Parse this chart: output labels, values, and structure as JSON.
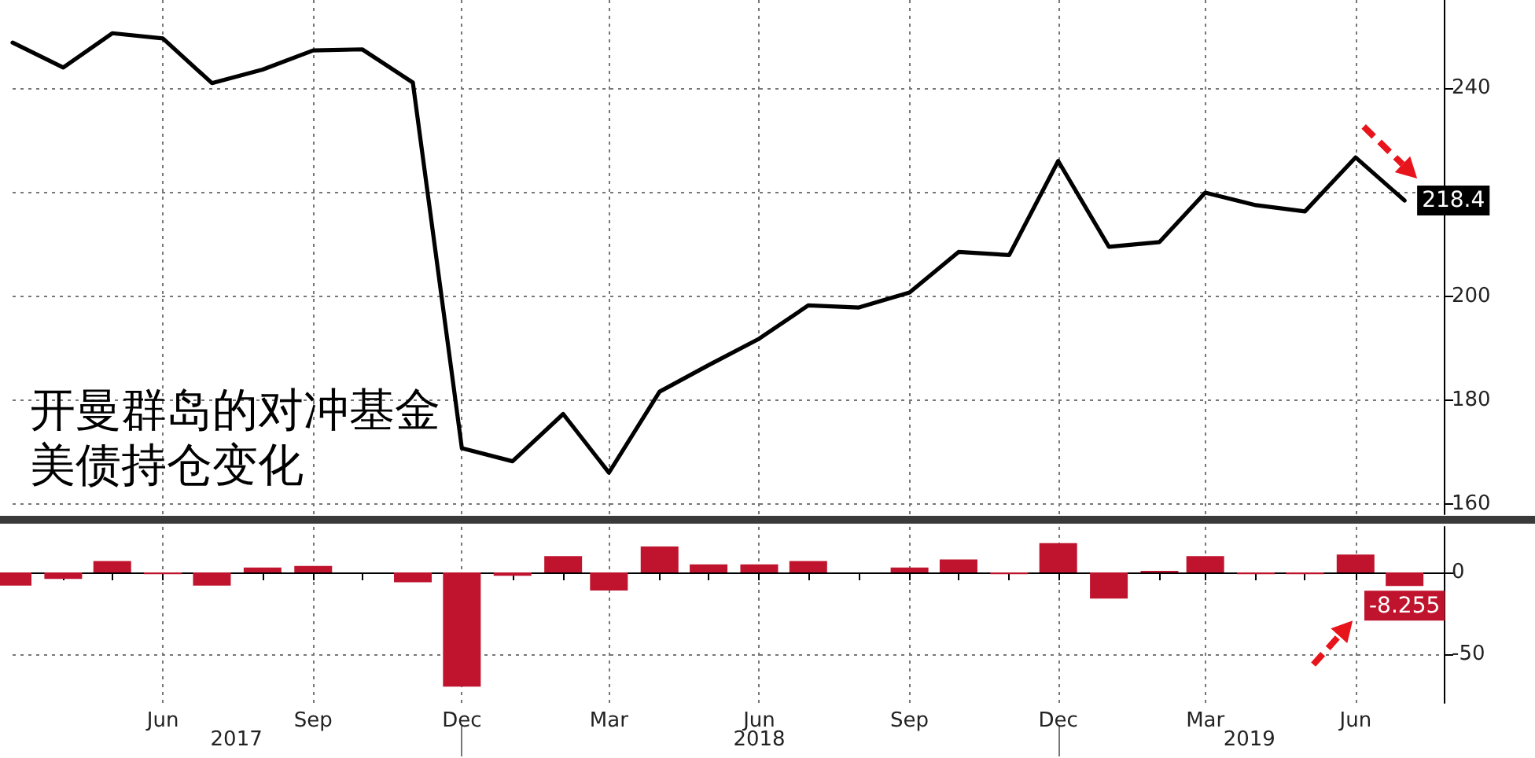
{
  "chart_data": [
    {
      "type": "line",
      "title": "开曼群岛的对冲基金美债持仓变化",
      "x": [
        "2017-03",
        "2017-04",
        "2017-05",
        "2017-06",
        "2017-07",
        "2017-08",
        "2017-09",
        "2017-10",
        "2017-11",
        "2017-12",
        "2018-01",
        "2018-02",
        "2018-03",
        "2018-04",
        "2018-05",
        "2018-06",
        "2018-07",
        "2018-08",
        "2018-09",
        "2018-10",
        "2018-11",
        "2018-12",
        "2019-01",
        "2019-02",
        "2019-03",
        "2019-04",
        "2019-05",
        "2019-06",
        "2019-07"
      ],
      "values": [
        248.8,
        244.0,
        250.6,
        249.6,
        241.0,
        243.6,
        247.3,
        247.5,
        241.1,
        170.7,
        168.2,
        177.3,
        166.0,
        181.6,
        186.7,
        191.8,
        198.2,
        197.8,
        200.7,
        208.5,
        207.9,
        226.0,
        209.5,
        210.4,
        219.9,
        217.5,
        216.3,
        226.7,
        218.4
      ],
      "value_labels": [
        null,
        null,
        null,
        null,
        null,
        null,
        null,
        null,
        null,
        null,
        null,
        null,
        null,
        null,
        null,
        null,
        null,
        null,
        null,
        null,
        null,
        null,
        null,
        null,
        null,
        null,
        null,
        null,
        "218.4"
      ],
      "color": "#000000",
      "xlim": [
        "2017-03",
        "2019-07-25"
      ],
      "xticks": [
        {
          "value": "2017-06",
          "label": null
        },
        {
          "value": "2017-09",
          "label": null
        },
        {
          "value": "2017-12",
          "label": null
        },
        {
          "value": "2018-03",
          "label": null
        },
        {
          "value": "2018-06",
          "label": null
        },
        {
          "value": "2018-09",
          "label": null
        },
        {
          "value": "2018-12",
          "label": null
        },
        {
          "value": "2019-03",
          "label": null
        },
        {
          "value": "2019-06",
          "label": null
        }
      ],
      "ylim": [
        158,
        257
      ],
      "yticks": [
        160,
        180,
        200,
        {
          "value": 220,
          "label": null
        },
        240
      ],
      "grid": true,
      "marker": "none",
      "tick_labels": "y"
    },
    {
      "type": "bar",
      "x": [
        "2017-03",
        "2017-04",
        "2017-05",
        "2017-06",
        "2017-07",
        "2017-08",
        "2017-09",
        "2017-10",
        "2017-11",
        "2017-12",
        "2018-01",
        "2018-02",
        "2018-03",
        "2018-04",
        "2018-05",
        "2018-06",
        "2018-07",
        "2018-08",
        "2018-09",
        "2018-10",
        "2018-11",
        "2018-12",
        "2019-01",
        "2019-02",
        "2019-03",
        "2019-04",
        "2019-05",
        "2019-06",
        "2019-07"
      ],
      "values": [
        -8,
        -4,
        7,
        -1,
        -8,
        3,
        4,
        0,
        -6,
        -70,
        -2,
        10,
        -11,
        16,
        5,
        5,
        7,
        0,
        3,
        8,
        -1,
        18,
        -16,
        1,
        10,
        -1,
        -1,
        11,
        -8.255
      ],
      "value_labels": [
        null,
        null,
        null,
        null,
        null,
        null,
        null,
        null,
        null,
        null,
        null,
        null,
        null,
        null,
        null,
        null,
        null,
        null,
        null,
        null,
        null,
        null,
        null,
        null,
        null,
        null,
        null,
        null,
        "-8.255"
      ],
      "color": "#c0142e",
      "xlim": [
        "2017-03",
        "2019-07-25"
      ],
      "xticks": [
        {
          "value": "2017-03",
          "label": null
        },
        {
          "value": "2017-04",
          "label": null
        },
        {
          "value": "2017-05",
          "label": null
        },
        {
          "value": "2017-06",
          "label": "Jun"
        },
        {
          "value": "2017-07",
          "label": null
        },
        {
          "value": "2017-08",
          "label": null
        },
        {
          "value": "2017-09",
          "label": "Sep"
        },
        {
          "value": "2017-10",
          "label": null
        },
        {
          "value": "2017-11",
          "label": null
        },
        {
          "value": "2017-12",
          "label": "Dec"
        },
        {
          "value": "2018-01",
          "label": null
        },
        {
          "value": "2018-02",
          "label": null
        },
        {
          "value": "2018-03",
          "label": "Mar"
        },
        {
          "value": "2018-04",
          "label": null
        },
        {
          "value": "2018-05",
          "label": null
        },
        {
          "value": "2018-06",
          "label": "Jun"
        },
        {
          "value": "2018-07",
          "label": null
        },
        {
          "value": "2018-08",
          "label": null
        },
        {
          "value": "2018-09",
          "label": "Sep"
        },
        {
          "value": "2018-10",
          "label": null
        },
        {
          "value": "2018-11",
          "label": null
        },
        {
          "value": "2018-12",
          "label": "Dec"
        },
        {
          "value": "2019-01",
          "label": null
        },
        {
          "value": "2019-02",
          "label": null
        },
        {
          "value": "2019-03",
          "label": "Mar"
        },
        {
          "value": "2019-04",
          "label": null
        },
        {
          "value": "2019-05",
          "label": null
        },
        {
          "value": "2019-06",
          "label": "Jun"
        },
        {
          "value": "2019-07",
          "label": null
        }
      ],
      "x2lim": [
        "2017-03",
        "2019-07-25"
      ],
      "x2ticks": [
        {
          "value": "2017-07-16",
          "label": "2017"
        },
        {
          "value": "2017-12",
          "label": null
        },
        {
          "value": "2018-06",
          "label": "2018"
        },
        {
          "value": "2018-12",
          "label": null
        },
        {
          "value": "2019-03-28",
          "label": "2019"
        }
      ],
      "ylim": [
        -80,
        28
      ],
      "yticks": [
        -50,
        0
      ],
      "grid": true
    }
  ]
}
